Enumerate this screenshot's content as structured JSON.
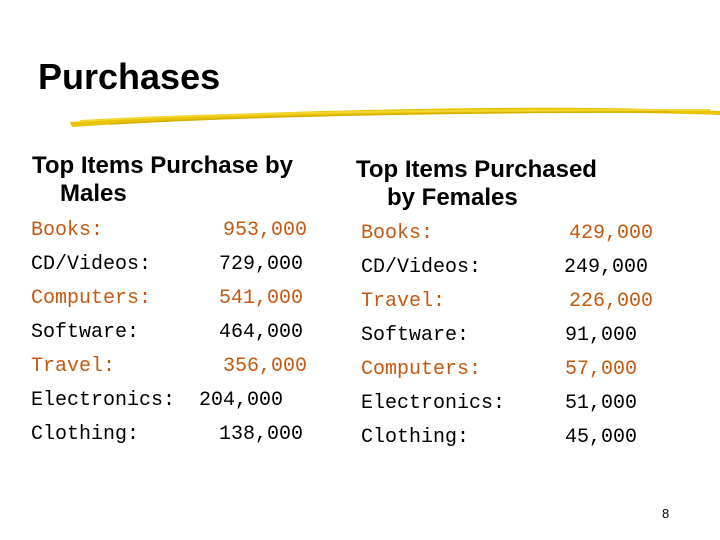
{
  "slide": {
    "title": "Purchases",
    "page_number": "8"
  },
  "colors": {
    "orange": "#c45911",
    "black": "#000000",
    "underline": "#e8c400"
  },
  "males": {
    "heading_line1": "Top Items Purchase by",
    "heading_line2": "Males",
    "items": [
      {
        "label": "Books:",
        "value": "953,000",
        "color": "orange"
      },
      {
        "label": "CD/Videos:",
        "value": "729,000",
        "color": "black"
      },
      {
        "label": "Computers:",
        "value": "541,000",
        "color": "orange"
      },
      {
        "label": "Software:",
        "value": "464,000",
        "color": "black"
      },
      {
        "label": "Travel:",
        "value": "356,000",
        "color": "orange"
      },
      {
        "label": "Electronics:",
        "value": "204,000",
        "color": "black"
      },
      {
        "label": "Clothing:",
        "value": "138,000",
        "color": "black"
      }
    ]
  },
  "females": {
    "heading_line1": "Top Items Purchased",
    "heading_line2": "by Females",
    "items": [
      {
        "label": "Books:",
        "value": "429,000",
        "color": "orange"
      },
      {
        "label": "CD/Videos:",
        "value": "249,000",
        "color": "black"
      },
      {
        "label": "Travel:",
        "value": "226,000",
        "color": "orange"
      },
      {
        "label": "Software:",
        "value": "91,000",
        "color": "black"
      },
      {
        "label": "Computers:",
        "value": "57,000",
        "color": "orange"
      },
      {
        "label": "Electronics:",
        "value": "51,000",
        "color": "black"
      },
      {
        "label": "Clothing:",
        "value": "45,000",
        "color": "black"
      }
    ]
  }
}
